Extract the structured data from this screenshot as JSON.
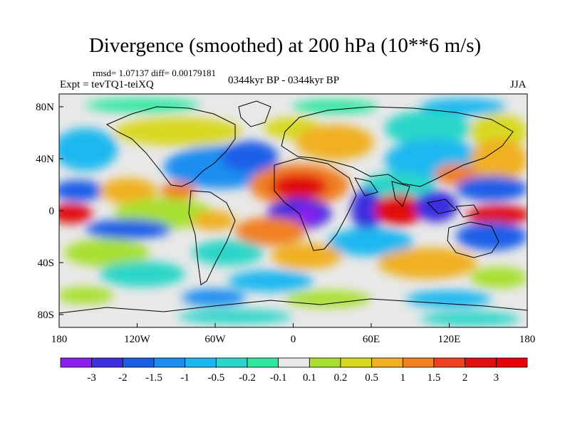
{
  "title": "Divergence (smoothed) at 200 hPa (10**6 m/s)",
  "stats": "rmsd= 1.07137 diff= 0.00179181",
  "experiment": "Expt = tevTQ1-teiXQ",
  "period": "0344kyr BP - 0344kyr BP",
  "season": "JJA",
  "axes": {
    "lat_ticks": [
      "80N",
      "40N",
      "0",
      "40S",
      "80S"
    ],
    "lon_ticks": [
      "180",
      "120W",
      "60W",
      "0",
      "60E",
      "120E",
      "180"
    ]
  },
  "colorbar": {
    "labels": [
      "-3",
      "-2",
      "-1.5",
      "-1",
      "-0.5",
      "-0.2",
      "-0.1",
      "0.1",
      "0.2",
      "0.5",
      "1",
      "1.5",
      "2",
      "3"
    ],
    "colors": [
      "#8a1ff0",
      "#3b2fe0",
      "#1a5ee8",
      "#1a8ef0",
      "#1ab8f0",
      "#2ad6c8",
      "#2ee8a0",
      "#e8e8e8",
      "#a8e030",
      "#d8d820",
      "#f0b020",
      "#f08020",
      "#f04020",
      "#e01010",
      "#e8000a"
    ]
  }
}
